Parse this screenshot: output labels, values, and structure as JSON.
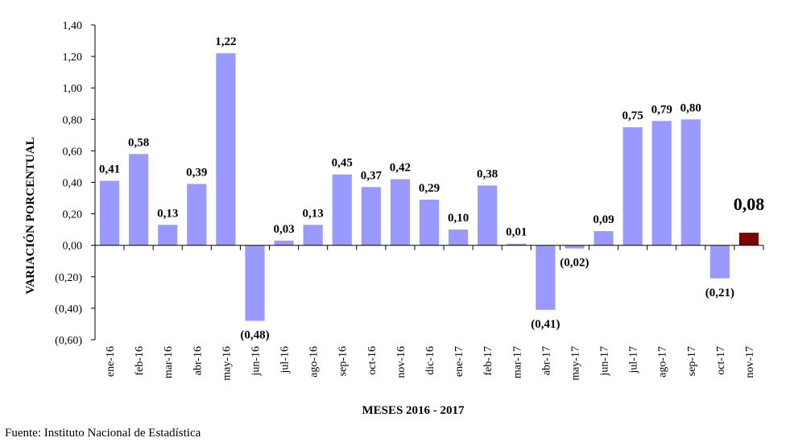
{
  "source": "Fuente: Instituto Nacional de Estadística",
  "colors": {
    "bar": "#9999ff",
    "highlight": "#800000",
    "axis": "#000000"
  },
  "chart_data": {
    "type": "bar",
    "title": "",
    "xlabel": "MESES 2016 - 2017",
    "ylabel": "VARIACIÓN PORCENTUAL",
    "ylim": [
      -0.6,
      1.4
    ],
    "yticks": [
      1.4,
      1.2,
      1.0,
      0.8,
      0.6,
      0.4,
      0.2,
      0.0,
      -0.2,
      -0.4,
      -0.6
    ],
    "ytick_labels": [
      "1,40",
      "1,20",
      "1,00",
      "0,80",
      "0,60",
      "0,40",
      "0,20",
      "0,00",
      "(0,20)",
      "(0,40)",
      "(0,60)"
    ],
    "grid": false,
    "legend": "none",
    "highlight_index": 22,
    "categories": [
      "ene-16",
      "feb-16",
      "mar-16",
      "abr-16",
      "may-16",
      "jun-16",
      "jul-16",
      "ago-16",
      "sep-16",
      "oct-16",
      "nov-16",
      "dic-16",
      "ene-17",
      "feb-17",
      "mar-17",
      "abr-17",
      "may-17",
      "jun-17",
      "jul-17",
      "ago-17",
      "sep-17",
      "oct-17",
      "nov-17"
    ],
    "values": [
      0.41,
      0.58,
      0.13,
      0.39,
      1.22,
      -0.48,
      0.03,
      0.13,
      0.45,
      0.37,
      0.42,
      0.29,
      0.1,
      0.38,
      0.01,
      -0.41,
      -0.02,
      0.09,
      0.75,
      0.79,
      0.8,
      -0.21,
      0.08
    ],
    "value_labels": [
      "0,41",
      "0,58",
      "0,13",
      "0,39",
      "1,22",
      "(0,48)",
      "0,03",
      "0,13",
      "0,45",
      "0,37",
      "0,42",
      "0,29",
      "0,10",
      "0,38",
      "0,01",
      "(0,41)",
      "(0,02)",
      "0,09",
      "0,75",
      "0,79",
      "0,80",
      "(0,21)",
      "0,08"
    ]
  }
}
